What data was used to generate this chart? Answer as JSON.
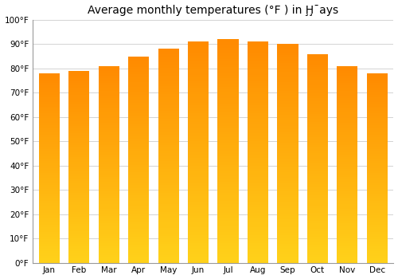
{
  "title": "Average monthly temperatures (°F ) in Ḩ̧¯ays",
  "months": [
    "Jan",
    "Feb",
    "Mar",
    "Apr",
    "May",
    "Jun",
    "Jul",
    "Aug",
    "Sep",
    "Oct",
    "Nov",
    "Dec"
  ],
  "values": [
    78,
    79,
    81,
    85,
    88,
    91,
    92,
    91,
    90,
    86,
    81,
    78
  ],
  "ylim": [
    0,
    100
  ],
  "yticks": [
    0,
    10,
    20,
    30,
    40,
    50,
    60,
    70,
    80,
    90,
    100
  ],
  "ytick_labels": [
    "0°F",
    "10°F",
    "20°F",
    "30°F",
    "40°F",
    "50°F",
    "60°F",
    "70°F",
    "80°F",
    "90°F",
    "100°F"
  ],
  "background_color": "#ffffff",
  "grid_color": "#cccccc",
  "title_fontsize": 10,
  "tick_fontsize": 7.5,
  "bar_width": 0.7
}
